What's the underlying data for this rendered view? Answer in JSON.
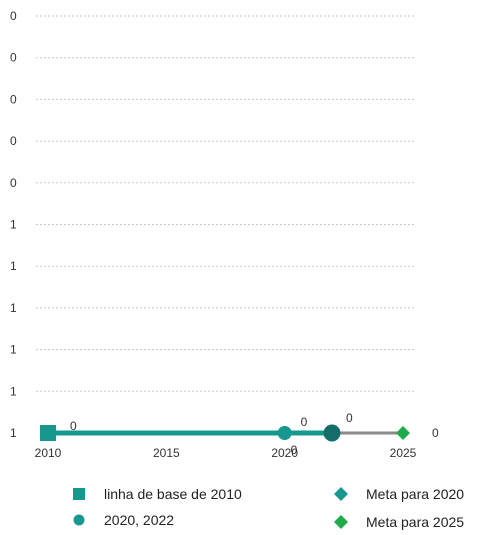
{
  "chart_data": {
    "type": "line",
    "y_tick_labels": [
      "1",
      "1",
      "1",
      "1",
      "1",
      "1",
      "0",
      "0",
      "0",
      "0",
      "0"
    ],
    "x_ticks": [
      2010,
      2015,
      2020,
      2025
    ],
    "xlim": [
      2010,
      2025
    ],
    "ylim": [
      0,
      1
    ],
    "grid": true,
    "series": [
      {
        "name": "linha de base de 2010",
        "marker": "square",
        "color": "#17988f",
        "points": [
          {
            "x": 2010,
            "y": 0,
            "label": "0"
          }
        ]
      },
      {
        "name": "2020, 2022",
        "marker": "circle",
        "color": "#17988f",
        "points": [
          {
            "x": 2020,
            "y": 0,
            "label": "0"
          },
          {
            "x": 2022,
            "y": 0,
            "label": "0"
          }
        ]
      },
      {
        "name": "Meta para 2020",
        "marker": "diamond",
        "color": "#17988f",
        "points": [
          {
            "x": 2020,
            "y": 0,
            "label": "0"
          }
        ]
      },
      {
        "name": "Meta para 2025",
        "marker": "diamond",
        "color": "#1fab4b",
        "points": [
          {
            "x": 2025,
            "y": 0,
            "label": "0"
          }
        ]
      }
    ],
    "colors": {
      "teal": "#17988f",
      "dark_teal": "#136e6b",
      "green": "#1fab4b",
      "gray_line": "#8a8a8a",
      "grid": "#c8c8c8"
    }
  }
}
